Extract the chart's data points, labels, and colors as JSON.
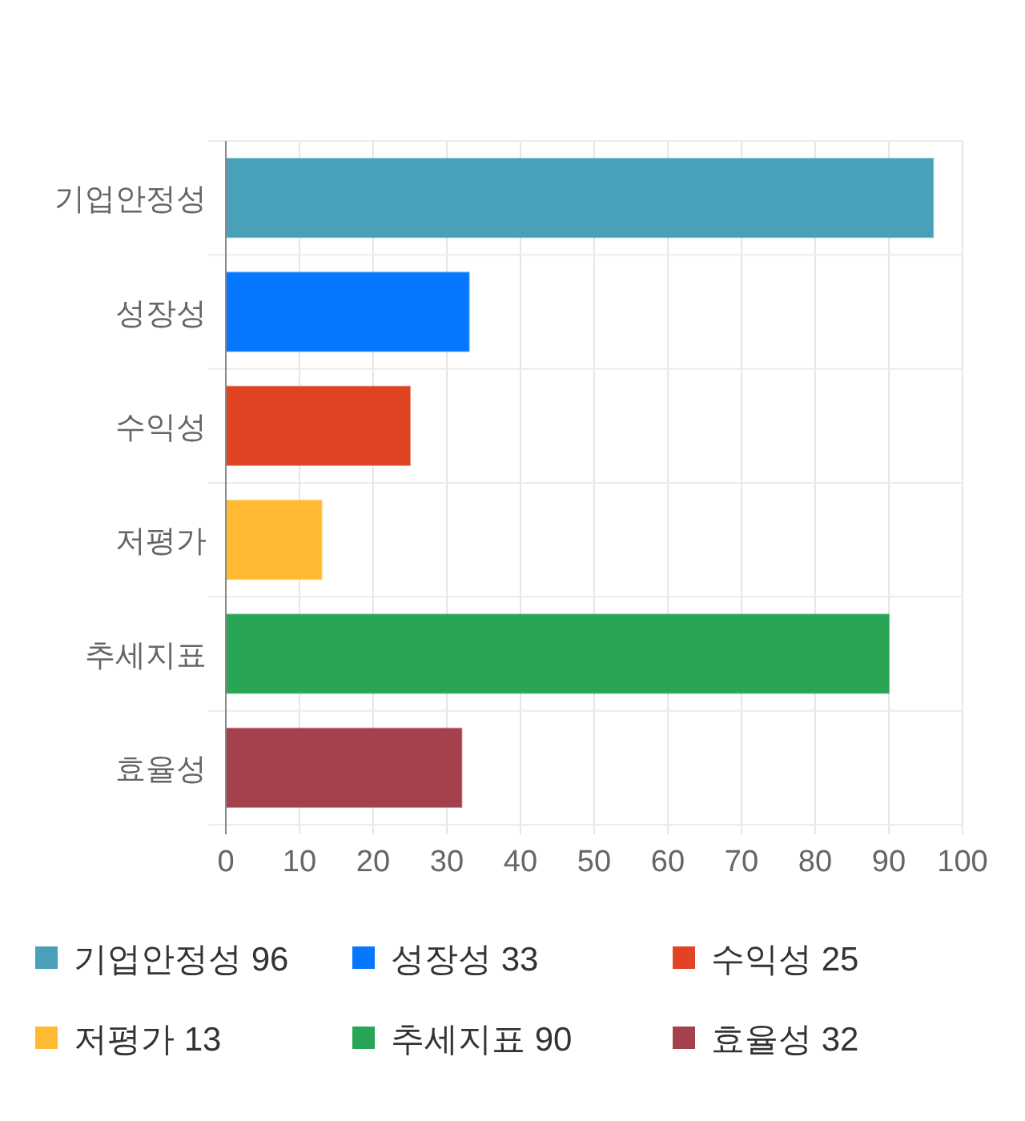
{
  "chart_data": {
    "type": "bar",
    "orientation": "horizontal",
    "stacked": true,
    "categories": [
      "기업안정성",
      "성장성",
      "수익성",
      "저평가",
      "추세지표",
      "효율성"
    ],
    "series": [
      {
        "name": "기업안정성 96",
        "color": "#48a0b9",
        "values": [
          96,
          null,
          null,
          null,
          null,
          null
        ]
      },
      {
        "name": "성장성 33",
        "color": "#0677ff",
        "values": [
          null,
          33,
          null,
          null,
          null,
          null
        ]
      },
      {
        "name": "수익성 25",
        "color": "#e04423",
        "values": [
          null,
          null,
          25,
          null,
          null,
          null
        ]
      },
      {
        "name": "저평가 13",
        "color": "#ffb933",
        "values": [
          null,
          null,
          null,
          13,
          null,
          null
        ]
      },
      {
        "name": "추세지표 90",
        "color": "#28a655",
        "values": [
          null,
          null,
          null,
          null,
          90,
          null
        ]
      },
      {
        "name": "효율성 32",
        "color": "#a5404d",
        "values": [
          null,
          null,
          null,
          null,
          null,
          32
        ]
      }
    ],
    "xlim": [
      0,
      100
    ],
    "xticks": [
      0,
      10,
      20,
      30,
      40,
      50,
      60,
      70,
      80,
      90,
      100
    ],
    "grid": true,
    "legend": "bottom"
  }
}
